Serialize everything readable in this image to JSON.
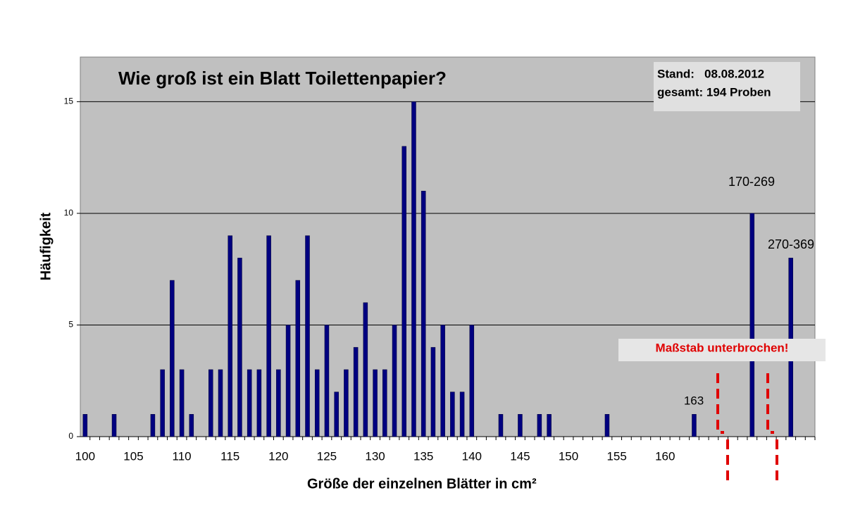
{
  "chart_data": {
    "type": "bar",
    "title": "Wie groß ist ein Blatt Toilettenpapier?",
    "x_label": "Größe der einzelnen Blätter in cm²",
    "y_label": "Häufigkeit",
    "annotations": [
      "Stand:   08.08.2012",
      "gesamt: 194 Proben",
      "163",
      "170-269",
      "270-369",
      "Maßstab unterbrochen!"
    ],
    "categories": [
      "100",
      null,
      null,
      null,
      null,
      "105",
      null,
      null,
      null,
      null,
      "110",
      null,
      null,
      null,
      null,
      "115",
      null,
      null,
      null,
      null,
      "120",
      null,
      null,
      null,
      null,
      "125",
      null,
      null,
      null,
      null,
      "130",
      null,
      null,
      null,
      null,
      "135",
      null,
      null,
      null,
      null,
      "140",
      null,
      null,
      null,
      null,
      "145",
      null,
      null,
      null,
      null,
      "150",
      null,
      null,
      null,
      null,
      "155",
      null,
      null,
      null,
      null,
      "160",
      null,
      null,
      null,
      null,
      null,
      null,
      null,
      null,
      null,
      null,
      null,
      null,
      null,
      null,
      null
    ],
    "values": [
      1,
      0,
      0,
      1,
      0,
      0,
      0,
      1,
      3,
      7,
      3,
      1,
      0,
      3,
      3,
      9,
      8,
      3,
      3,
      9,
      3,
      5,
      7,
      9,
      3,
      5,
      2,
      3,
      4,
      6,
      3,
      3,
      5,
      13,
      15,
      11,
      4,
      5,
      2,
      2,
      5,
      0,
      0,
      1,
      0,
      1,
      0,
      1,
      1,
      0,
      0,
      0,
      0,
      0,
      1,
      0,
      0,
      0,
      0,
      0,
      0,
      0,
      0,
      1,
      0,
      0,
      0,
      0,
      0,
      10,
      0,
      0,
      0,
      8,
      0,
      0
    ],
    "color": "#000080",
    "ylim": [
      0,
      17
    ],
    "yticks": [
      0,
      5,
      10,
      15
    ],
    "grid": true
  }
}
